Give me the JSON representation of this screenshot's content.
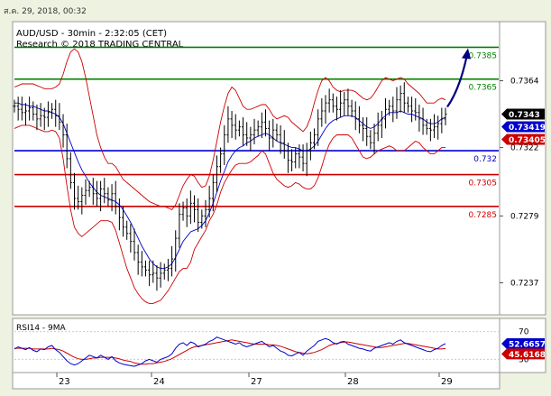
{
  "header": {
    "timestamp": "ส.ค. 29, 2018, 00:32"
  },
  "chart_data": {
    "type": "candlestick",
    "title": "AUD/USD - 30min - 2:32:05 (CET)",
    "subtitle": "Research © 2018 TRADING CENTRAL",
    "y_ticks": [
      0.7364,
      0.7322,
      0.7279,
      0.7237
    ],
    "ylim": [
      0.7218,
      0.74
    ],
    "x_ticks": [
      "23",
      "24",
      "27",
      "28",
      "29"
    ],
    "levels": [
      {
        "label": "0.7385",
        "value": 0.7385,
        "color": "#008000"
      },
      {
        "label": "0.7365",
        "value": 0.7365,
        "color": "#008000"
      },
      {
        "label": "0.732",
        "value": 0.732,
        "color": "#0000cc"
      },
      {
        "label": "0.7305",
        "value": 0.7305,
        "color": "#cc0000"
      },
      {
        "label": "0.7285",
        "value": 0.7285,
        "color": "#cc0000"
      }
    ],
    "price_labels": [
      {
        "label": "0.7343",
        "value": 0.7343,
        "bg": "#000000",
        "fg": "#ffffff"
      },
      {
        "label": "0.73419",
        "value": 0.73419,
        "bg": "#0000cc",
        "fg": "#ffffff"
      },
      {
        "label": "0.73405",
        "value": 0.73405,
        "bg": "#cc0000",
        "fg": "#ffffff"
      }
    ],
    "price_series": [
      0.7348,
      0.7346,
      0.7344,
      0.7345,
      0.7347,
      0.7343,
      0.734,
      0.7342,
      0.7341,
      0.7344,
      0.7346,
      0.7342,
      0.7338,
      0.733,
      0.7315,
      0.73,
      0.729,
      0.7288,
      0.7292,
      0.7295,
      0.7297,
      0.7293,
      0.729,
      0.7296,
      0.7293,
      0.7289,
      0.7293,
      0.7285,
      0.7278,
      0.7272,
      0.7268,
      0.7263,
      0.7256,
      0.725,
      0.7247,
      0.7245,
      0.7242,
      0.7243,
      0.724,
      0.7243,
      0.7245,
      0.7246,
      0.7252,
      0.7265,
      0.728,
      0.7284,
      0.7279,
      0.7287,
      0.7283,
      0.7275,
      0.7279,
      0.7283,
      0.729,
      0.73,
      0.731,
      0.7318,
      0.733,
      0.734,
      0.7336,
      0.7333,
      0.7335,
      0.733,
      0.7328,
      0.733,
      0.7333,
      0.7335,
      0.7338,
      0.7334,
      0.7328,
      0.7333,
      0.733,
      0.7325,
      0.732,
      0.7314,
      0.7313,
      0.7318,
      0.7316,
      0.7312,
      0.732,
      0.7325,
      0.733,
      0.734,
      0.7345,
      0.735,
      0.7352,
      0.7348,
      0.7346,
      0.735,
      0.7352,
      0.7348,
      0.7345,
      0.734,
      0.7336,
      0.7334,
      0.7329,
      0.7325,
      0.7331,
      0.7336,
      0.734,
      0.7346,
      0.7348,
      0.7345,
      0.7352,
      0.7356,
      0.735,
      0.7348,
      0.7345,
      0.7344,
      0.734,
      0.7336,
      0.7334,
      0.7333,
      0.7335,
      0.7337,
      0.734,
      0.7343
    ],
    "upper_band": [
      0.736,
      0.7361,
      0.7362,
      0.7362,
      0.7362,
      0.7362,
      0.7361,
      0.736,
      0.7359,
      0.7359,
      0.7359,
      0.736,
      0.7362,
      0.7368,
      0.7376,
      0.7382,
      0.7384,
      0.7382,
      0.7376,
      0.7366,
      0.7354,
      0.7342,
      0.733,
      0.7322,
      0.7316,
      0.7312,
      0.7312,
      0.731,
      0.7306,
      0.7302,
      0.73,
      0.7298,
      0.7296,
      0.7294,
      0.7292,
      0.729,
      0.7288,
      0.7287,
      0.7286,
      0.7285,
      0.7285,
      0.7284,
      0.7283,
      0.7286,
      0.7292,
      0.7298,
      0.7302,
      0.7305,
      0.7304,
      0.73,
      0.7297,
      0.7298,
      0.7304,
      0.7314,
      0.7326,
      0.7338,
      0.7348,
      0.7356,
      0.736,
      0.7358,
      0.7353,
      0.7348,
      0.7346,
      0.7346,
      0.7347,
      0.7348,
      0.7349,
      0.7349,
      0.7346,
      0.7342,
      0.734,
      0.7341,
      0.7342,
      0.7341,
      0.7338,
      0.7336,
      0.7334,
      0.7332,
      0.7335,
      0.7341,
      0.735,
      0.7358,
      0.7364,
      0.7366,
      0.7364,
      0.736,
      0.7358,
      0.7357,
      0.7358,
      0.7358,
      0.7358,
      0.7357,
      0.7355,
      0.7353,
      0.7352,
      0.7353,
      0.7356,
      0.736,
      0.7364,
      0.7366,
      0.7365,
      0.7364,
      0.7365,
      0.7366,
      0.7365,
      0.7362,
      0.736,
      0.7358,
      0.7356,
      0.7353,
      0.735,
      0.735,
      0.735,
      0.7352,
      0.7353,
      0.7352
    ],
    "lower_band": [
      0.7334,
      0.7335,
      0.7336,
      0.7336,
      0.7336,
      0.7335,
      0.7334,
      0.7333,
      0.7332,
      0.7332,
      0.7333,
      0.7332,
      0.7328,
      0.7315,
      0.7298,
      0.7283,
      0.7272,
      0.7268,
      0.7266,
      0.7268,
      0.727,
      0.7272,
      0.7274,
      0.7276,
      0.7276,
      0.7276,
      0.7275,
      0.727,
      0.7262,
      0.7254,
      0.7246,
      0.724,
      0.7234,
      0.723,
      0.7227,
      0.7225,
      0.7224,
      0.7224,
      0.7225,
      0.7226,
      0.7229,
      0.7232,
      0.7236,
      0.724,
      0.7244,
      0.7246,
      0.7246,
      0.725,
      0.7258,
      0.7262,
      0.7266,
      0.727,
      0.7276,
      0.728,
      0.7286,
      0.7294,
      0.73,
      0.7304,
      0.7308,
      0.7311,
      0.7312,
      0.7312,
      0.7312,
      0.7313,
      0.7315,
      0.7317,
      0.732,
      0.7318,
      0.7312,
      0.7306,
      0.7302,
      0.73,
      0.7298,
      0.7297,
      0.7298,
      0.73,
      0.7299,
      0.7297,
      0.7296,
      0.7296,
      0.7298,
      0.7303,
      0.731,
      0.7318,
      0.7324,
      0.7328,
      0.733,
      0.733,
      0.733,
      0.733,
      0.7328,
      0.7324,
      0.732,
      0.7316,
      0.7315,
      0.7316,
      0.7318,
      0.732,
      0.7321,
      0.7322,
      0.7323,
      0.7322,
      0.732,
      0.732,
      0.732,
      0.7322,
      0.7324,
      0.7326,
      0.7325,
      0.7322,
      0.732,
      0.7318,
      0.7318,
      0.732,
      0.7322,
      0.7322
    ],
    "moving_average": [
      0.735,
      0.735,
      0.7349,
      0.7349,
      0.7348,
      0.7348,
      0.7347,
      0.7346,
      0.7345,
      0.7345,
      0.7344,
      0.7343,
      0.7341,
      0.7337,
      0.7331,
      0.7325,
      0.7319,
      0.7313,
      0.7308,
      0.7304,
      0.73,
      0.7297,
      0.7294,
      0.7292,
      0.7291,
      0.729,
      0.7289,
      0.7288,
      0.7286,
      0.7283,
      0.7279,
      0.7275,
      0.727,
      0.7265,
      0.726,
      0.7256,
      0.7252,
      0.7249,
      0.7247,
      0.7246,
      0.7246,
      0.7247,
      0.7249,
      0.7253,
      0.7258,
      0.7263,
      0.7266,
      0.7269,
      0.727,
      0.7271,
      0.7273,
      0.7276,
      0.7281,
      0.7287,
      0.7294,
      0.7301,
      0.7307,
      0.7313,
      0.7317,
      0.732,
      0.7322,
      0.7323,
      0.7325,
      0.7326,
      0.7328,
      0.7329,
      0.733,
      0.7331,
      0.733,
      0.7328,
      0.7326,
      0.7325,
      0.7324,
      0.7323,
      0.7322,
      0.7322,
      0.7321,
      0.732,
      0.732,
      0.7321,
      0.7323,
      0.7326,
      0.733,
      0.7334,
      0.7337,
      0.7339,
      0.734,
      0.7341,
      0.7342,
      0.7342,
      0.7342,
      0.7341,
      0.7339,
      0.7337,
      0.7335,
      0.7334,
      0.7335,
      0.7337,
      0.734,
      0.7342,
      0.7344,
      0.7344,
      0.7344,
      0.7345,
      0.7344,
      0.7343,
      0.7343,
      0.7342,
      0.7341,
      0.734,
      0.7338,
      0.7337,
      0.7337,
      0.7338,
      0.734,
      0.7341
    ],
    "forecast_arrow": {
      "from": 0.7343,
      "to": 0.7385
    },
    "rsi": {
      "title": "RSI14 - 9MA",
      "ticks": [
        70,
        30
      ],
      "ylim": [
        15,
        85
      ],
      "labels": [
        {
          "label": "52.6657",
          "value": 52.6657,
          "bg": "#0000cc",
          "fg": "#ffffff"
        },
        {
          "label": "45.6168",
          "value": 45.6168,
          "bg": "#cc0000",
          "fg": "#ffffff"
        }
      ],
      "series": [
        45,
        48,
        46,
        44,
        47,
        43,
        41,
        45,
        44,
        48,
        50,
        44,
        40,
        34,
        28,
        24,
        22,
        24,
        28,
        32,
        36,
        34,
        32,
        36,
        33,
        30,
        34,
        28,
        25,
        23,
        22,
        21,
        20,
        22,
        24,
        28,
        30,
        28,
        26,
        30,
        32,
        34,
        38,
        46,
        52,
        54,
        50,
        55,
        53,
        48,
        50,
        52,
        56,
        58,
        62,
        60,
        58,
        56,
        54,
        52,
        54,
        50,
        48,
        50,
        52,
        54,
        56,
        52,
        48,
        50,
        46,
        42,
        40,
        36,
        35,
        38,
        40,
        36,
        42,
        46,
        50,
        56,
        58,
        60,
        58,
        54,
        52,
        55,
        56,
        52,
        50,
        48,
        46,
        45,
        43,
        42,
        46,
        48,
        50,
        52,
        54,
        52,
        56,
        58,
        54,
        52,
        50,
        48,
        46,
        44,
        42,
        41,
        44,
        46,
        50,
        52.6657
      ],
      "ma": [
        46,
        46,
        46,
        46,
        46,
        45,
        45,
        45,
        45,
        45,
        46,
        45,
        44,
        42,
        39,
        36,
        33,
        31,
        30,
        30,
        31,
        32,
        32,
        33,
        33,
        33,
        33,
        32,
        31,
        29,
        28,
        27,
        25,
        24,
        23,
        23,
        24,
        24,
        25,
        26,
        27,
        29,
        31,
        34,
        37,
        40,
        43,
        46,
        48,
        49,
        50,
        51,
        52,
        53,
        54,
        55,
        56,
        57,
        58,
        57,
        56,
        55,
        54,
        53,
        52,
        52,
        52,
        52,
        51,
        51,
        50,
        49,
        47,
        45,
        43,
        41,
        40,
        39,
        38,
        39,
        40,
        42,
        44,
        47,
        50,
        52,
        53,
        54,
        55,
        55,
        54,
        53,
        52,
        51,
        50,
        49,
        48,
        47,
        47,
        48,
        49,
        50,
        51,
        52,
        53,
        53,
        52,
        51,
        50,
        49,
        48,
        47,
        46,
        45,
        45,
        45.6168
      ]
    }
  }
}
